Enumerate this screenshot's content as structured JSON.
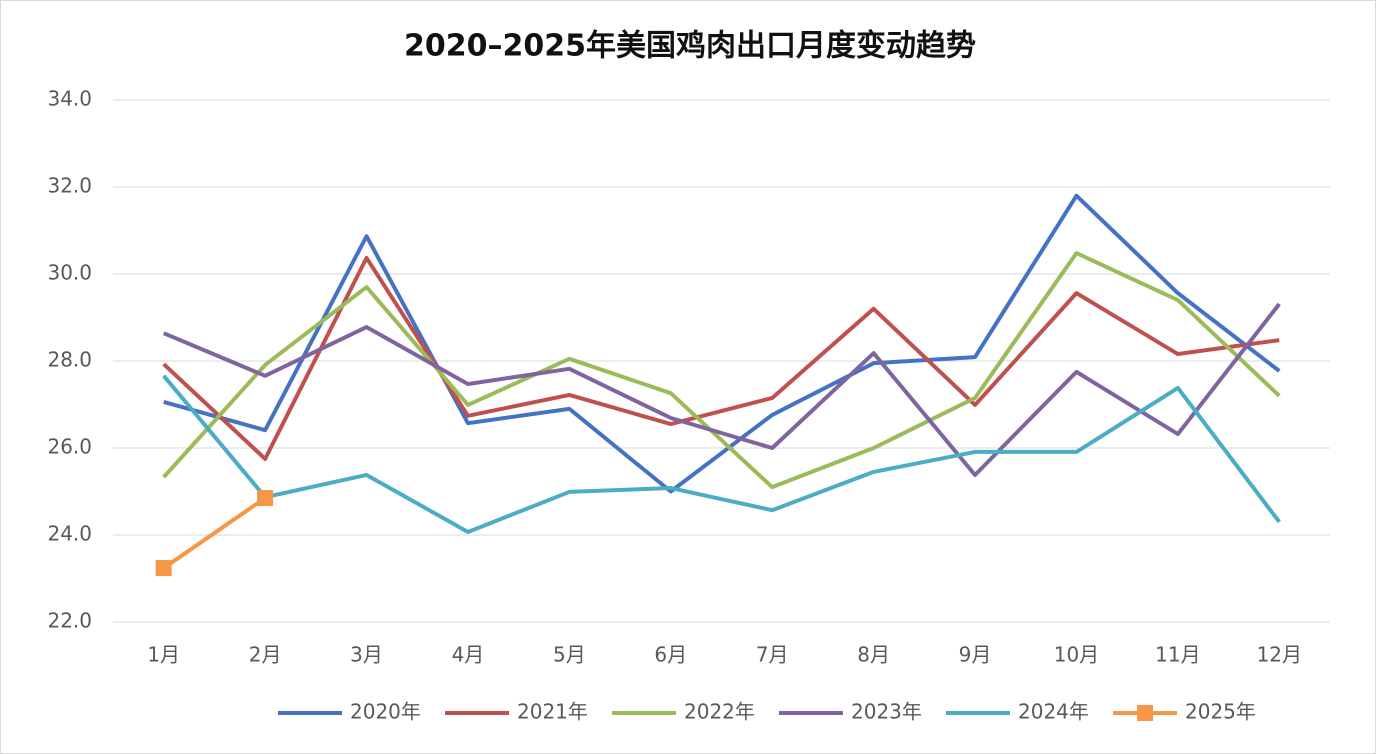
{
  "chart_data": {
    "type": "line",
    "title": "2020–2025年美国鸡肉出口月度变动趋势",
    "categories": [
      "1月",
      "2月",
      "3月",
      "4月",
      "5月",
      "6月",
      "7月",
      "8月",
      "9月",
      "10月",
      "11月",
      "12月"
    ],
    "series": [
      {
        "name": "2020年",
        "color": "#4472c4",
        "values": [
          27.06,
          26.41,
          30.87,
          26.57,
          26.9,
          25.0,
          26.76,
          27.95,
          28.09,
          31.8,
          29.56,
          27.77
        ]
      },
      {
        "name": "2021年",
        "color": "#c0504d",
        "values": [
          27.93,
          25.75,
          30.37,
          26.74,
          27.22,
          26.55,
          27.15,
          29.2,
          26.99,
          29.56,
          28.16,
          28.48
        ]
      },
      {
        "name": "2022年",
        "color": "#9bbb59",
        "values": [
          25.33,
          27.91,
          29.7,
          26.99,
          28.05,
          27.26,
          25.1,
          26.0,
          27.15,
          30.48,
          29.4,
          27.2
        ]
      },
      {
        "name": "2023年",
        "color": "#8064a2",
        "values": [
          28.64,
          27.66,
          28.78,
          27.47,
          27.82,
          26.69,
          26.0,
          28.18,
          25.38,
          27.75,
          26.32,
          29.31
        ]
      },
      {
        "name": "2024年",
        "color": "#4bacc6",
        "values": [
          27.66,
          24.87,
          25.38,
          24.07,
          24.99,
          25.08,
          24.57,
          25.45,
          25.91,
          25.91,
          27.38,
          24.3
        ]
      },
      {
        "name": "2025年",
        "color": "#f79646",
        "marker": "square",
        "values": [
          23.24,
          24.85,
          null,
          null,
          null,
          null,
          null,
          null,
          null,
          null,
          null,
          null
        ]
      }
    ],
    "ylim": [
      22,
      34
    ],
    "yticks": [
      {
        "value": 22,
        "label": "22.0"
      },
      {
        "value": 24,
        "label": "24.0"
      },
      {
        "value": 26,
        "label": "26.0"
      },
      {
        "value": 28,
        "label": "28.0"
      },
      {
        "value": 30,
        "label": "30.0"
      },
      {
        "value": 32,
        "label": "32.0"
      },
      {
        "value": 34,
        "label": "34.0"
      }
    ],
    "grid": true,
    "legend": "bottom"
  }
}
